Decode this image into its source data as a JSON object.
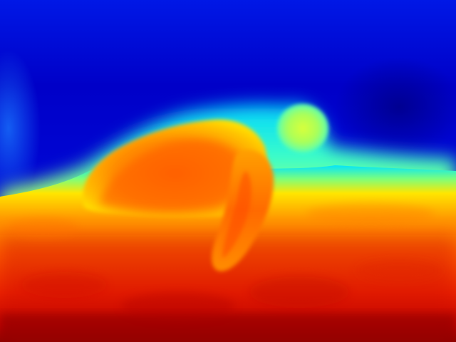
{
  "image": {
    "colormap": "jet",
    "palette": {
      "far": "#00008b",
      "deep_blue": "#0000d0",
      "blue": "#0a2cff",
      "cyan": "#00e4ff",
      "green": "#6aff8c",
      "yellow": "#ffe600",
      "orange": "#ff9a00",
      "red_orange": "#ff4a00",
      "red": "#e01000",
      "near": "#8b0000"
    }
  }
}
